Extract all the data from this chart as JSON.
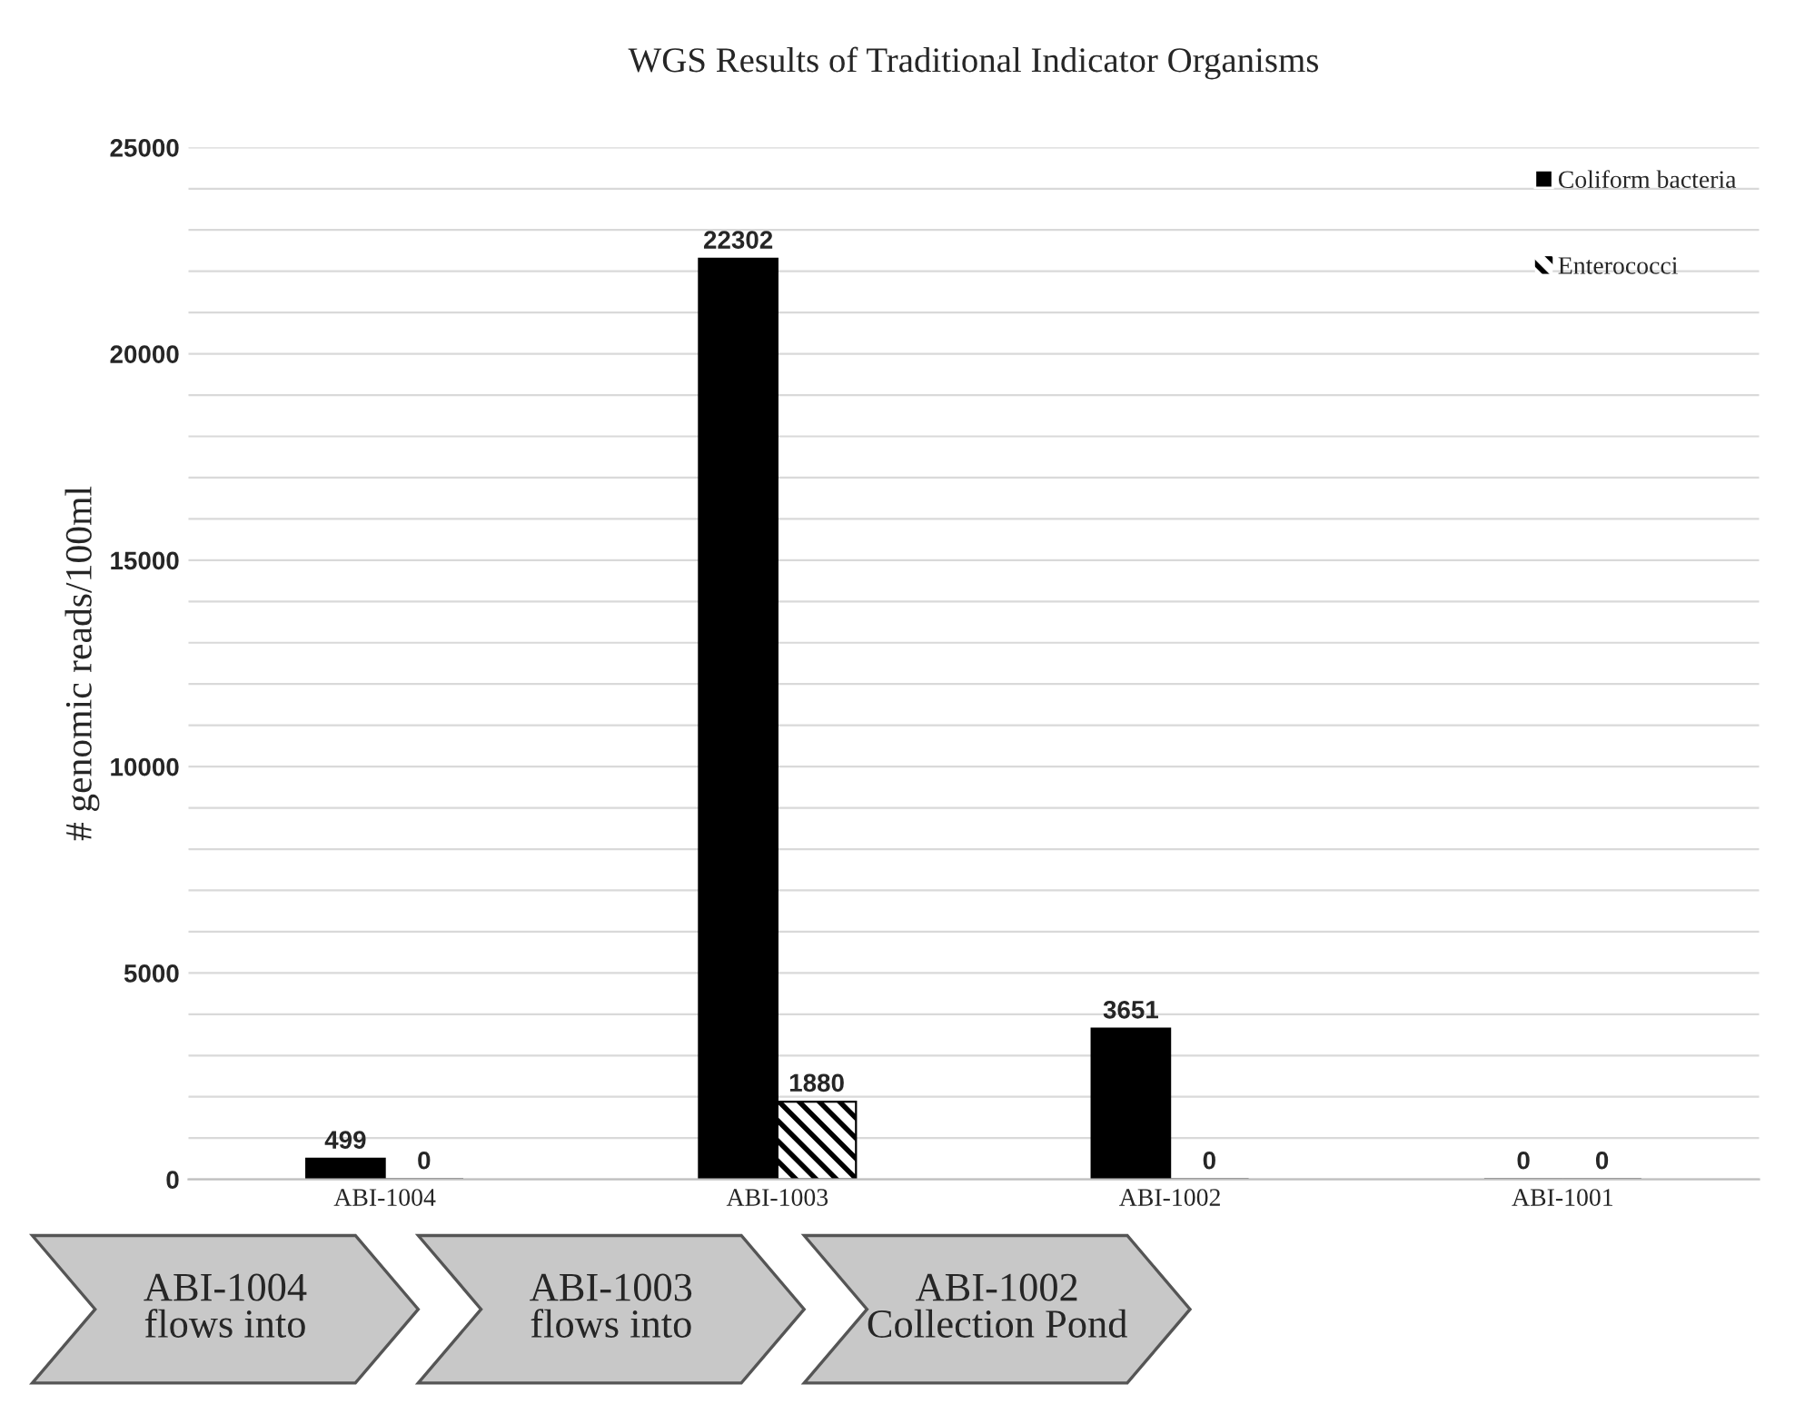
{
  "chart_data": {
    "type": "bar",
    "title": "WGS Results of Traditional Indicator Organisms",
    "ylabel": "# genomic reads/100ml",
    "categories": [
      "ABI-1004",
      "ABI-1003",
      "ABI-1002",
      "ABI-1001"
    ],
    "series": [
      {
        "name": "Coliform bacteria",
        "color": "#000000",
        "values": [
          499,
          22302,
          3651,
          0
        ]
      },
      {
        "name": "Enterococci",
        "color": "#000000",
        "values": [
          0,
          1880,
          0,
          0
        ]
      }
    ],
    "ylim": [
      0,
      25000
    ],
    "yticks": [
      0,
      {
        "value": 1000,
        "label": null
      },
      {
        "value": 2000,
        "label": null
      },
      {
        "value": 3000,
        "label": null
      },
      {
        "value": 4000,
        "label": null
      },
      5000,
      {
        "value": 6000,
        "label": null
      },
      {
        "value": 7000,
        "label": null
      },
      {
        "value": 8000,
        "label": null
      },
      {
        "value": 9000,
        "label": null
      },
      10000,
      {
        "value": 11000,
        "label": null
      },
      {
        "value": 12000,
        "label": null
      },
      {
        "value": 13000,
        "label": null
      },
      {
        "value": 14000,
        "label": null
      },
      15000,
      {
        "value": 16000,
        "label": null
      },
      {
        "value": 17000,
        "label": null
      },
      {
        "value": 18000,
        "label": null
      },
      {
        "value": 19000,
        "label": null
      },
      20000,
      {
        "value": 21000,
        "label": null
      },
      {
        "value": 22000,
        "label": null
      },
      {
        "value": 23000,
        "label": null
      },
      {
        "value": 24000,
        "label": null
      },
      25000
    ],
    "grid": "y",
    "legend": "top right",
    "data_labels": true,
    "annotations": [
      "ABI-1004 flows into",
      "ABI-1003 flows into",
      "ABI-1002 Collection Pond"
    ]
  }
}
